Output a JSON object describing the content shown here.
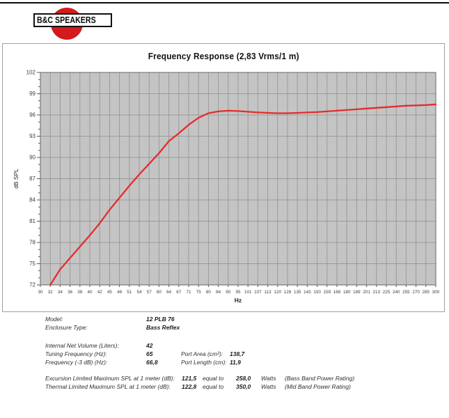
{
  "logo": {
    "text": "B&C SPEAKERS"
  },
  "colors": {
    "accent_red": "#d41a1a",
    "curve": "#e62b2b",
    "plot_bg": "#c4c4c4",
    "grid": "#9a9a9a",
    "plot_border": "#666666",
    "axis_tick": "#555555",
    "tick_text": "#3c3c3c"
  },
  "chart_data": {
    "type": "line",
    "title": "Frequency Response (2,83 Vrms/1 m)",
    "xlabel": "Hz",
    "ylabel": "dB SPL",
    "x_scale": "log-categorical",
    "grid": true,
    "xlim": [
      30,
      300
    ],
    "ylim": [
      72,
      102
    ],
    "x_ticks": [
      30,
      32,
      34,
      36,
      38,
      40,
      42,
      45,
      48,
      51,
      54,
      57,
      60,
      64,
      67,
      71,
      75,
      80,
      84,
      90,
      95,
      101,
      107,
      113,
      120,
      128,
      135,
      143,
      150,
      159,
      168,
      180,
      189,
      201,
      213,
      225,
      240,
      255,
      270,
      285,
      300
    ],
    "y_ticks": [
      72,
      75,
      78,
      81,
      84,
      87,
      90,
      93,
      96,
      99,
      102
    ],
    "y_minor_step": 1,
    "series": [
      {
        "name": "SPL",
        "points": [
          [
            32,
            72.0
          ],
          [
            34,
            74.2
          ],
          [
            36,
            75.8
          ],
          [
            38,
            77.4
          ],
          [
            40,
            79.0
          ],
          [
            42,
            80.7
          ],
          [
            45,
            82.6
          ],
          [
            48,
            84.3
          ],
          [
            51,
            86.0
          ],
          [
            54,
            87.6
          ],
          [
            57,
            89.1
          ],
          [
            60,
            90.6
          ],
          [
            64,
            92.3
          ],
          [
            67,
            93.4
          ],
          [
            71,
            94.6
          ],
          [
            75,
            95.6
          ],
          [
            80,
            96.25
          ],
          [
            84,
            96.5
          ],
          [
            90,
            96.6
          ],
          [
            95,
            96.55
          ],
          [
            101,
            96.45
          ],
          [
            107,
            96.35
          ],
          [
            113,
            96.3
          ],
          [
            120,
            96.25
          ],
          [
            128,
            96.25
          ],
          [
            135,
            96.3
          ],
          [
            143,
            96.35
          ],
          [
            150,
            96.4
          ],
          [
            159,
            96.5
          ],
          [
            168,
            96.6
          ],
          [
            180,
            96.7
          ],
          [
            189,
            96.8
          ],
          [
            201,
            96.9
          ],
          [
            213,
            97.0
          ],
          [
            225,
            97.1
          ],
          [
            240,
            97.2
          ],
          [
            255,
            97.3
          ],
          [
            270,
            97.35
          ],
          [
            285,
            97.4
          ],
          [
            300,
            97.5
          ]
        ]
      }
    ]
  },
  "specs": {
    "group1": [
      {
        "label": "Model:",
        "value": "12 PLB 76"
      },
      {
        "label": "Enclosure Type:",
        "value": "Bass Reflex"
      }
    ],
    "group2": [
      {
        "label": "Internal Net Volume (Liters):",
        "value": "42",
        "label2": "",
        "value2": ""
      },
      {
        "label": "Tuning Frequency (Hz):",
        "value": "65",
        "label2": "Port Area (cm²):",
        "value2": "138,7"
      },
      {
        "label": "Frequency (-3 dB) (Hz):",
        "value": "66,8",
        "label2": "Port Length (cm):",
        "value2": "11,9"
      }
    ],
    "group3": [
      {
        "label": "Excursion Limited Maximum SPL at 1 meter (dB):",
        "value": "121,5",
        "mid": "equal to",
        "value2": "258,0",
        "unit": "Watts",
        "note": "(Bass Band Power Rating)"
      },
      {
        "label": "Thermal Limited Maximum SPL at 1 meter (dB):",
        "value": "122,8",
        "mid": "equal to",
        "value2": "350,0",
        "unit": "Watts",
        "note": "(Mid Band Power Rating)"
      }
    ]
  }
}
